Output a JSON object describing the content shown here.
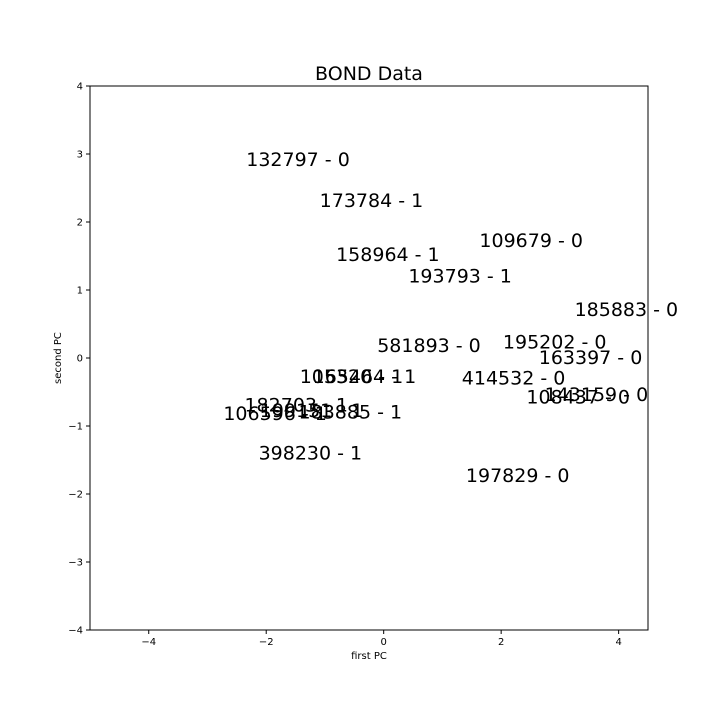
{
  "chart_data": {
    "type": "scatter",
    "title": "BOND Data",
    "xlabel": "first PC",
    "ylabel": "second PC",
    "xlim": [
      -5,
      4.5
    ],
    "ylim": [
      -4,
      4
    ],
    "xticks": [
      -4,
      -2,
      0,
      2,
      4
    ],
    "yticks": [
      -4,
      -3,
      -2,
      -1,
      0,
      1,
      2,
      3,
      4
    ],
    "xtick_labels": [
      "−4",
      "−2",
      "0",
      "2",
      "4"
    ],
    "ytick_labels": [
      "−4",
      "−3",
      "−2",
      "−1",
      "0",
      "1",
      "2",
      "3",
      "4"
    ],
    "grid": false,
    "points": [
      {
        "x": -2.34,
        "y": 2.82,
        "label": "132797 - 0"
      },
      {
        "x": -1.09,
        "y": 2.22,
        "label": "173784 - 1"
      },
      {
        "x": 1.63,
        "y": 1.63,
        "label": "109679 - 0"
      },
      {
        "x": -0.81,
        "y": 1.43,
        "label": "158964 - 1"
      },
      {
        "x": 0.42,
        "y": 1.11,
        "label": "193793 - 1"
      },
      {
        "x": 3.25,
        "y": 0.62,
        "label": "185883 - 0"
      },
      {
        "x": 2.03,
        "y": 0.14,
        "label": "195202 - 0"
      },
      {
        "x": -0.11,
        "y": 0.09,
        "label": "581893 - 0"
      },
      {
        "x": 2.64,
        "y": -0.09,
        "label": "163397 - 0"
      },
      {
        "x": -1.43,
        "y": -0.37,
        "label": "105320 - 1"
      },
      {
        "x": -1.21,
        "y": -0.37,
        "label": "165464 - 1"
      },
      {
        "x": 1.33,
        "y": -0.39,
        "label": "414532 - 0"
      },
      {
        "x": 2.74,
        "y": -0.63,
        "label": "143159 - 0"
      },
      {
        "x": 2.43,
        "y": -0.67,
        "label": "108437 - 0"
      },
      {
        "x": -2.37,
        "y": -0.79,
        "label": "182703 - 1"
      },
      {
        "x": -2.11,
        "y": -0.87,
        "label": "199151 - 1"
      },
      {
        "x": -2.73,
        "y": -0.91,
        "label": "106596 - 1"
      },
      {
        "x": -1.45,
        "y": -0.89,
        "label": "183885 - 1"
      },
      {
        "x": -2.13,
        "y": -1.49,
        "label": "398230 - 1"
      },
      {
        "x": 1.4,
        "y": -1.82,
        "label": "197829 - 0"
      }
    ]
  }
}
